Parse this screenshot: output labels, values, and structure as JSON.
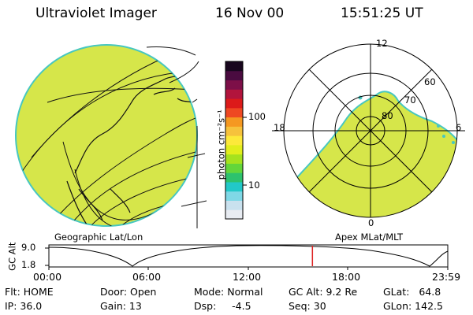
{
  "header": {
    "title": "Ultraviolet Imager",
    "date": "16 Nov 00",
    "time": "15:51:25 UT"
  },
  "colorbar": {
    "unit_label": "photon cm⁻²s⁻¹",
    "tick_labels": [
      "100",
      "10"
    ],
    "colors": [
      "#e8ecf2",
      "#c9e1ee",
      "#7fd8e6",
      "#22c8c8",
      "#2dc26d",
      "#63d63a",
      "#a6e21e",
      "#e2ee1c",
      "#fde93a",
      "#f6c23c",
      "#f59821",
      "#ee4822",
      "#dc1a1a",
      "#b2143c",
      "#7d0f48",
      "#4a0b40",
      "#18061e"
    ]
  },
  "left_panel": {
    "caption": "Geographic Lat/Lon",
    "image_color": "#d6e64a",
    "rim_color": "#47c7c0"
  },
  "right_panel": {
    "caption": "Apex MLat/MLT",
    "mlt_labels": [
      "12",
      "18",
      "6",
      "0"
    ],
    "mlat_labels": [
      "60",
      "70",
      "80"
    ],
    "image_color": "#d6e64a",
    "rim_color": "#47c7c0"
  },
  "altitude_plot": {
    "ylabel": "GC Alt",
    "ytick_labels": [
      "9.0",
      "1.8"
    ],
    "xtick_labels": [
      "00:00",
      "06:00",
      "12:00",
      "18:00",
      "23:59"
    ],
    "current_time_fraction": 0.6607,
    "marker_color": "#dd2222"
  },
  "status": {
    "flt": "Flt: HOME",
    "ip": "IP: 36.0",
    "door": "Door: Open",
    "gain": "Gain: 13",
    "mode": "Mode: Normal",
    "dsp": "Dsp:     -4.5",
    "gc_alt": "GC Alt: 9.2 Re",
    "seq": "Seq: 30",
    "glat": "GLat:   64.8",
    "glon": "GLon: 142.5"
  }
}
